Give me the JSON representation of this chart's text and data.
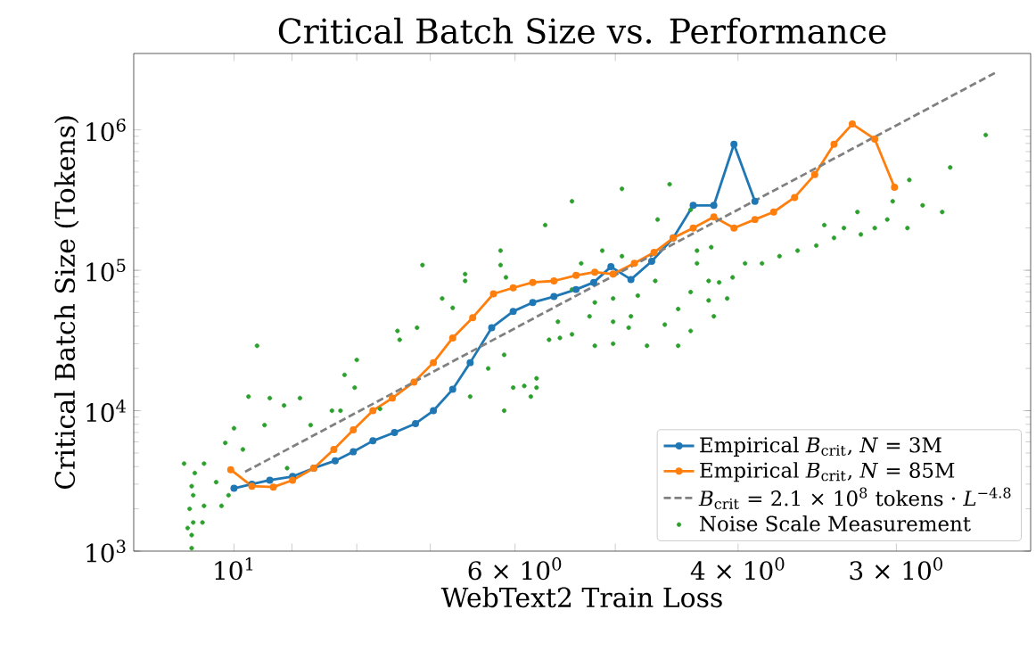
{
  "chart_data": {
    "type": "line",
    "title": "Critical Batch Size vs. Performance",
    "xlabel": "WebText2 Train Loss",
    "ylabel": "Critical Batch Size (Tokens)",
    "log": "xy",
    "legend": "bottom right",
    "xlim": [
      12,
      2.35
    ],
    "ylim": [
      1000,
      3500000
    ],
    "xticks": [
      {
        "value": 10,
        "label": "10$^{1}$"
      },
      {
        "value": 9,
        "label": null
      },
      {
        "value": 8,
        "label": null
      },
      {
        "value": 7,
        "label": null
      },
      {
        "value": 6,
        "label": "6 × 10$^{0}$"
      },
      {
        "value": 5,
        "label": null
      },
      {
        "value": 4,
        "label": "4 × 10$^{0}$"
      },
      {
        "value": 3,
        "label": "3 × 10$^{0}$"
      }
    ],
    "yticks": [
      {
        "value": 1000,
        "label": "10$^{3}$"
      },
      {
        "value": 10000,
        "label": "10$^{4}$"
      },
      {
        "value": 100000,
        "label": "10$^{5}$"
      },
      {
        "value": 1000000,
        "label": "10$^{6}$"
      }
    ],
    "series": [
      {
        "name": "Empirical *B*$_{crit}$, *N* = 3M",
        "color": "#1f77b4",
        "marker": "circle",
        "line_style": "solid",
        "x": [
          10,
          9.68,
          9.37,
          8.99,
          8.65,
          8.32,
          8.05,
          7.77,
          7.47,
          7.19,
          6.96,
          6.72,
          6.51,
          6.26,
          6.02,
          5.81,
          5.59,
          5.37,
          5.2,
          5.04,
          4.86,
          4.68,
          4.5,
          4.34,
          4.18,
          4.03,
          3.88
        ],
        "values": [
          2800,
          3000,
          3200,
          3400,
          3900,
          4400,
          5100,
          6100,
          7000,
          8100,
          10000,
          14200,
          22000,
          39000,
          51000,
          59000,
          65000,
          73000,
          82000,
          106000,
          86000,
          116000,
          170000,
          290000,
          290000,
          790000,
          310000
        ]
      },
      {
        "name": "Empirical *B*$_{crit}$, *N* = 85M",
        "color": "#ff7f0e",
        "marker": "circle",
        "line_style": "solid",
        "x": [
          10.06,
          9.68,
          9.31,
          8.99,
          8.65,
          8.34,
          8.05,
          7.77,
          7.5,
          7.21,
          6.96,
          6.72,
          6.48,
          6.24,
          6.02,
          5.81,
          5.59,
          5.37,
          5.19,
          5.02,
          4.83,
          4.66,
          4.5,
          4.34,
          4.18,
          4.03,
          3.88,
          3.75,
          3.61,
          3.48,
          3.36,
          3.25,
          3.12,
          3.01
        ],
        "values": [
          3800,
          2900,
          2860,
          3200,
          3900,
          5300,
          7300,
          10000,
          12300,
          16000,
          22000,
          33000,
          46000,
          68000,
          75000,
          82000,
          84000,
          92000,
          97000,
          94000,
          112000,
          134000,
          170000,
          200000,
          240000,
          200000,
          230000,
          260000,
          330000,
          480000,
          790000,
          1100000,
          860000,
          390000
        ]
      },
      {
        "name": "*B*$_{crit}$ = 2.1 × 10$^{8}$ tokens · *L*$^{−4.8}$",
        "color": "#808080",
        "marker": "none",
        "line_style": "dashed",
        "x": [
          9.8,
          2.5
        ],
        "values": [
          3670,
          2580000
        ]
      },
      {
        "name": "Noise Scale Measurement",
        "type": "scatter",
        "color": "#2ca02c",
        "marker": "circle",
        "x": [
          10.8,
          10.8,
          10.77,
          10.84,
          10.77,
          10.8,
          10.74,
          10.88,
          10.95,
          10.56,
          10.33,
          10.1,
          10.23,
          10.56,
          10.59,
          10,
          9.84,
          10.16,
          9.74,
          9.59,
          9.37,
          9.13,
          8.87,
          9.46,
          8.7,
          9.08,
          8.37,
          8.24,
          8.18,
          8,
          8.03,
          7.67,
          7.43,
          7.4,
          7.17,
          7.1,
          6.85,
          6.72,
          6.57,
          6.57,
          6.51,
          6.3,
          6.16,
          6.16,
          6.12,
          6.12,
          6.02,
          5.9,
          5.83,
          5.77,
          5.68,
          5.64,
          5.55,
          5.41,
          6.1,
          4.94,
          4.63,
          4.53,
          5.12,
          4.94,
          5.32,
          5.41,
          5.19,
          5.02,
          4.8,
          5.24,
          5.02,
          4.86,
          5.41,
          5.53,
          5.19,
          5.02,
          4.88,
          4.72,
          4.46,
          4.57,
          4.36,
          4.46,
          4.36,
          4.22,
          4.14,
          4.22,
          4.04,
          4.18,
          4.08,
          4.31,
          4.31,
          4.2,
          3.95,
          3.83,
          3.71,
          3.59,
          3.47,
          3.36,
          3.3,
          3.2,
          3.12,
          3.05,
          2.94,
          3.42,
          3.22,
          3.02,
          2.93,
          2.86,
          2.76,
          2.72,
          2.55,
          4.65,
          4.36,
          5.77
        ],
        "values": [
          1050,
          1300,
          1600,
          2000,
          2500,
          2900,
          3600,
          1460,
          4200,
          4200,
          3100,
          2500,
          2100,
          2100,
          1600,
          7500,
          5300,
          5900,
          12600,
          29000,
          12300,
          10900,
          12300,
          7900,
          7900,
          3900,
          10000,
          10000,
          18000,
          23000,
          14600,
          10300,
          37000,
          32000,
          39000,
          109000,
          63000,
          54000,
          94000,
          84000,
          12600,
          20000,
          138000,
          109000,
          25000,
          10000,
          14600,
          15000,
          12600,
          17000,
          210000,
          32000,
          43000,
          310000,
          89000,
          380000,
          230000,
          410000,
          138000,
          126000,
          112000,
          73000,
          59000,
          63000,
          66000,
          47000,
          43000,
          47000,
          35000,
          33000,
          29000,
          30000,
          39000,
          29000,
          29000,
          41000,
          37000,
          53000,
          70000,
          84000,
          82000,
          61000,
          89000,
          47000,
          63000,
          112000,
          138000,
          146000,
          112000,
          112000,
          126000,
          138000,
          150000,
          170000,
          200000,
          180000,
          200000,
          230000,
          200000,
          210000,
          260000,
          310000,
          440000,
          290000,
          260000,
          540000,
          920000,
          84000,
          270000,
          14600
        ]
      }
    ]
  }
}
